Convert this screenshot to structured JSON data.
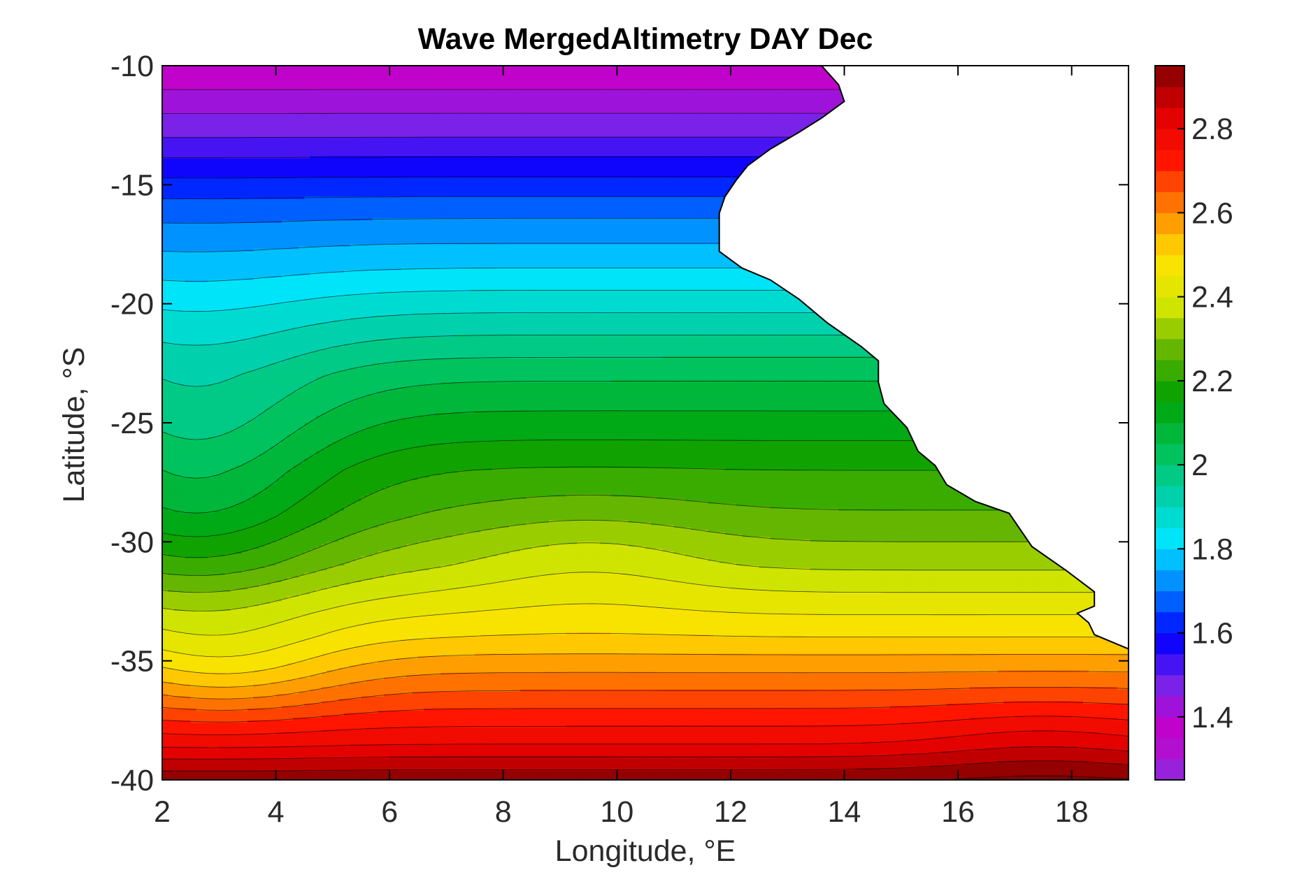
{
  "chart_data": {
    "type": "heatmap",
    "title": "Wave MergedAltimetry DAY Dec",
    "xlabel": "Longitude, °E",
    "ylabel": "Latitude, °S",
    "xlim": [
      2,
      19
    ],
    "ylim": [
      -40,
      -10
    ],
    "xticks": [
      2,
      4,
      6,
      8,
      10,
      12,
      14,
      16,
      18
    ],
    "yticks": [
      -10,
      -15,
      -20,
      -25,
      -30,
      -35,
      -40
    ],
    "colorbar": {
      "range": [
        1.25,
        2.95
      ],
      "ticks": [
        1.4,
        1.6,
        1.8,
        2,
        2.2,
        2.4,
        2.6,
        2.8
      ],
      "colormap": [
        "#8A2BE2",
        "#C800C8",
        "#7A22E8",
        "#0000FF",
        "#007FFF",
        "#00E6FF",
        "#00D0A8",
        "#00C050",
        "#00A000",
        "#60B400",
        "#D8E800",
        "#FFE000",
        "#FF8000",
        "#FF1500",
        "#E00000",
        "#800000"
      ]
    },
    "contour_level_step": 0.05,
    "grid": false,
    "surface_note": "Significant wave height field, increasing southward; land mask on east",
    "coastline": [
      [
        13.6,
        -10
      ],
      [
        13.9,
        -10.8
      ],
      [
        14,
        -11.5
      ],
      [
        13.6,
        -12.2
      ],
      [
        13.2,
        -12.8
      ],
      [
        12.7,
        -13.5
      ],
      [
        12.3,
        -14.2
      ],
      [
        12.1,
        -14.8
      ],
      [
        11.9,
        -15.5
      ],
      [
        11.8,
        -16.2
      ],
      [
        11.8,
        -17
      ],
      [
        11.8,
        -17.8
      ],
      [
        12.2,
        -18.5
      ],
      [
        12.7,
        -19
      ],
      [
        13.2,
        -19.8
      ],
      [
        13.7,
        -20.8
      ],
      [
        14.3,
        -21.8
      ],
      [
        14.6,
        -22.4
      ],
      [
        14.6,
        -23.3
      ],
      [
        14.7,
        -24.2
      ],
      [
        15.1,
        -25.2
      ],
      [
        15.3,
        -26.2
      ],
      [
        15.6,
        -26.8
      ],
      [
        15.8,
        -27.6
      ],
      [
        16.3,
        -28.3
      ],
      [
        16.9,
        -28.8
      ],
      [
        17.3,
        -30.2
      ],
      [
        17.9,
        -31.2
      ],
      [
        18.4,
        -32.1
      ],
      [
        18.4,
        -32.7
      ],
      [
        18.1,
        -33
      ],
      [
        18.3,
        -33.4
      ],
      [
        18.4,
        -33.9
      ],
      [
        18.8,
        -34.3
      ],
      [
        19,
        -34.5
      ],
      [
        19,
        -40
      ]
    ]
  }
}
